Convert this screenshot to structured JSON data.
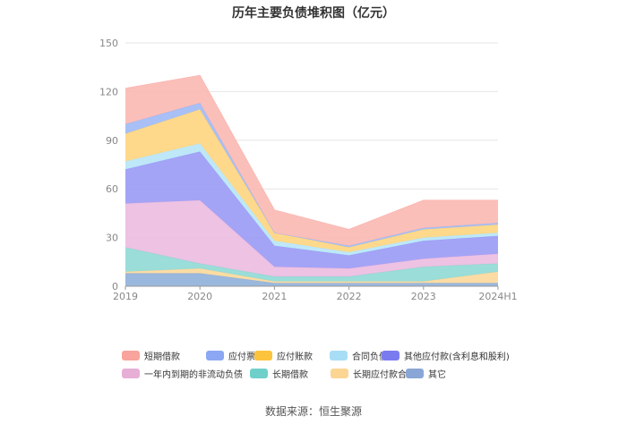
{
  "chart_data": {
    "type": "area",
    "title": "历年主要负债堆积图（亿元）",
    "x": [
      "2019",
      "2020",
      "2021",
      "2022",
      "2023",
      "2024H1"
    ],
    "y_ticks": [
      "0",
      "30",
      "60",
      "90",
      "120",
      "150"
    ],
    "ylim": [
      0,
      150
    ],
    "stacked": true,
    "grid": true,
    "legend_position": "bottom",
    "series": [
      {
        "name": "其它",
        "color": "#8fb0d9",
        "values": [
          8,
          8,
          2,
          2,
          2,
          2
        ]
      },
      {
        "name": "长期应付款合计",
        "color": "#fcd89a",
        "values": [
          1,
          3,
          1,
          1,
          1,
          7
        ]
      },
      {
        "name": "长期借款",
        "color": "#8fd9d5",
        "values": [
          15,
          3,
          3,
          3,
          9,
          5
        ]
      },
      {
        "name": "一年内到期的非流动负债",
        "color": "#ebbbe0",
        "values": [
          27,
          39,
          6,
          5,
          5,
          6
        ]
      },
      {
        "name": "其他应付款(含利息和股利)",
        "color": "#9a9af5",
        "values": [
          21,
          30,
          13,
          8,
          11,
          11
        ]
      },
      {
        "name": "合同负债",
        "color": "#b7e5f7",
        "values": [
          5,
          5,
          3,
          2,
          2,
          2
        ]
      },
      {
        "name": "应付账款",
        "color": "#ffd57e",
        "values": [
          17,
          21,
          5,
          3,
          5,
          5
        ]
      },
      {
        "name": "应付票据",
        "color": "#9fb9f5",
        "values": [
          6,
          4,
          0,
          1,
          1,
          1
        ]
      },
      {
        "name": "短期借款",
        "color": "#fbb8b3",
        "values": [
          22,
          17,
          14,
          10,
          17,
          14
        ]
      }
    ]
  },
  "legend_rows": [
    [
      {
        "name": "短期借款",
        "color": "#f8a39c"
      },
      {
        "name": "应付票据",
        "color": "#8ca8f3"
      },
      {
        "name": "应付账款",
        "color": "#fcc43d"
      },
      {
        "name": "合同负债",
        "color": "#a8def5"
      },
      {
        "name": "其他应付款(含利息和股利)",
        "color": "#7b7bf0"
      }
    ],
    [
      {
        "name": "一年内到期的非流动负债",
        "color": "#e7aed6"
      },
      {
        "name": "长期借款",
        "color": "#6fd0cb"
      },
      {
        "name": "长期应付款合计",
        "color": "#fcd593"
      },
      {
        "name": "其它",
        "color": "#8aa6d6"
      }
    ]
  ],
  "source": "数据来源：恒生聚源"
}
